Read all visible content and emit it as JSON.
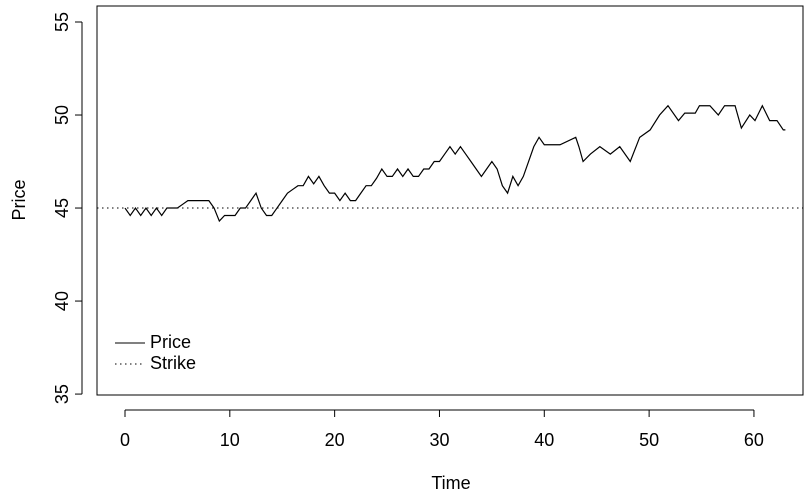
{
  "chart_data": {
    "type": "line",
    "xlabel": "Time",
    "ylabel": "Price",
    "x": [
      0,
      0.5,
      1,
      1.5,
      2,
      2.5,
      3,
      3.5,
      4,
      4.5,
      5,
      5.5,
      6,
      6.5,
      7,
      7.5,
      8,
      8.5,
      9,
      9.5,
      10,
      10.5,
      11,
      11.5,
      12,
      12.5,
      13,
      13.5,
      14,
      14.5,
      15,
      15.5,
      16,
      16.5,
      17,
      17.5,
      18,
      18.5,
      19,
      19.5,
      20,
      20.5,
      21,
      21.5,
      22,
      22.5,
      23,
      23.5,
      24,
      24.5,
      25,
      25.5,
      26,
      26.5,
      27,
      27.5,
      28,
      28.5,
      29,
      29.5,
      30,
      30.5,
      31,
      31.5,
      32,
      32.5,
      33,
      33.5,
      34,
      34.5,
      35,
      35.5,
      36,
      36.5,
      37,
      37.5,
      38,
      38.5,
      39,
      39.5,
      40,
      41.5,
      43,
      43.3,
      43.7,
      44.4,
      45.3,
      46.3,
      47.2,
      48.2,
      49.1,
      50.1,
      51,
      51.8,
      52.8,
      53.4,
      54.4,
      54.8,
      55.8,
      56.6,
      57.2,
      58.2,
      58.8,
      59.6,
      60.1,
      60.8,
      61.5,
      62.2,
      62.8,
      63
    ],
    "series": [
      {
        "name": "Price",
        "color": "#000000",
        "values": [
          45,
          44.6,
          45,
          44.6,
          45,
          44.6,
          45,
          44.6,
          45,
          45,
          45,
          45.2,
          45.4,
          45.4,
          45.4,
          45.4,
          45.4,
          45,
          44.3,
          44.6,
          44.6,
          44.6,
          45,
          45,
          45.4,
          45.8,
          45,
          44.6,
          44.6,
          45,
          45.4,
          45.8,
          46,
          46.2,
          46.2,
          46.7,
          46.3,
          46.7,
          46.2,
          45.8,
          45.8,
          45.4,
          45.8,
          45.4,
          45.4,
          45.8,
          46.2,
          46.2,
          46.6,
          47.1,
          46.7,
          46.7,
          47.1,
          46.7,
          47.1,
          46.7,
          46.7,
          47.1,
          47.1,
          47.5,
          47.5,
          47.9,
          48.3,
          47.9,
          48.3,
          47.9,
          47.5,
          47.1,
          46.7,
          47.1,
          47.5,
          47.1,
          46.2,
          45.8,
          46.7,
          46.2,
          46.7,
          47.5,
          48.3,
          48.8,
          48.4,
          48.4,
          48.8,
          48.3,
          47.5,
          47.9,
          48.3,
          47.9,
          48.3,
          47.5,
          48.8,
          49.2,
          50,
          50.5,
          49.7,
          50.1,
          50.1,
          50.5,
          50.5,
          50,
          50.5,
          50.5,
          49.3,
          50,
          49.7,
          50.5,
          49.7,
          49.7,
          49.2,
          49.2
        ]
      }
    ],
    "hlines": [
      {
        "name": "Strike",
        "value": 45,
        "color": "#000000",
        "dash": "dotted"
      }
    ],
    "xlim": [
      -2.67,
      64.68
    ],
    "xticks": [
      0,
      10,
      20,
      30,
      40,
      50,
      60
    ],
    "ylim": [
      34.95,
      55.86
    ],
    "yticks": [
      35,
      40,
      45,
      50,
      55
    ],
    "legend": "bottomleft"
  }
}
